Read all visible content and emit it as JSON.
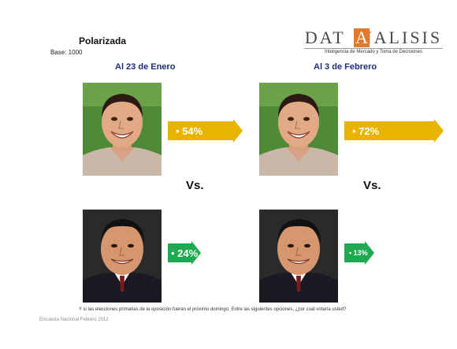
{
  "title": "Polarizada",
  "base": "Base: 1000",
  "logo": {
    "text_left": "DAT",
    "letter_highlight": "A",
    "text_right": "NALISIS",
    "tagline": "Inteligencia de Mercado y Toma de Decisiones",
    "accent_color": "#e07a2a"
  },
  "columns": [
    {
      "header": "Al 23 de Enero"
    },
    {
      "header": "Al 3 de Febrero"
    }
  ],
  "vs_label": "Vs.",
  "question": "Y si las elecciones primarias de la oposición fueran el próximo domingo. Entre las siguientes opciones, ¿por cuál votaría usted?",
  "footer": "Encuesta Nacional Febrero 2012",
  "chart_data": {
    "type": "bar",
    "categories": [
      "Al 23 de Enero",
      "Al 3 de Febrero"
    ],
    "series": [
      {
        "values": [
          54,
          72
        ],
        "labels": [
          "• 54%",
          "• 72%"
        ],
        "color": "#e8b400"
      },
      {
        "values": [
          24,
          13
        ],
        "labels": [
          "• 24%",
          "• 13%"
        ],
        "color": "#1faa52"
      }
    ],
    "unit": "%"
  }
}
